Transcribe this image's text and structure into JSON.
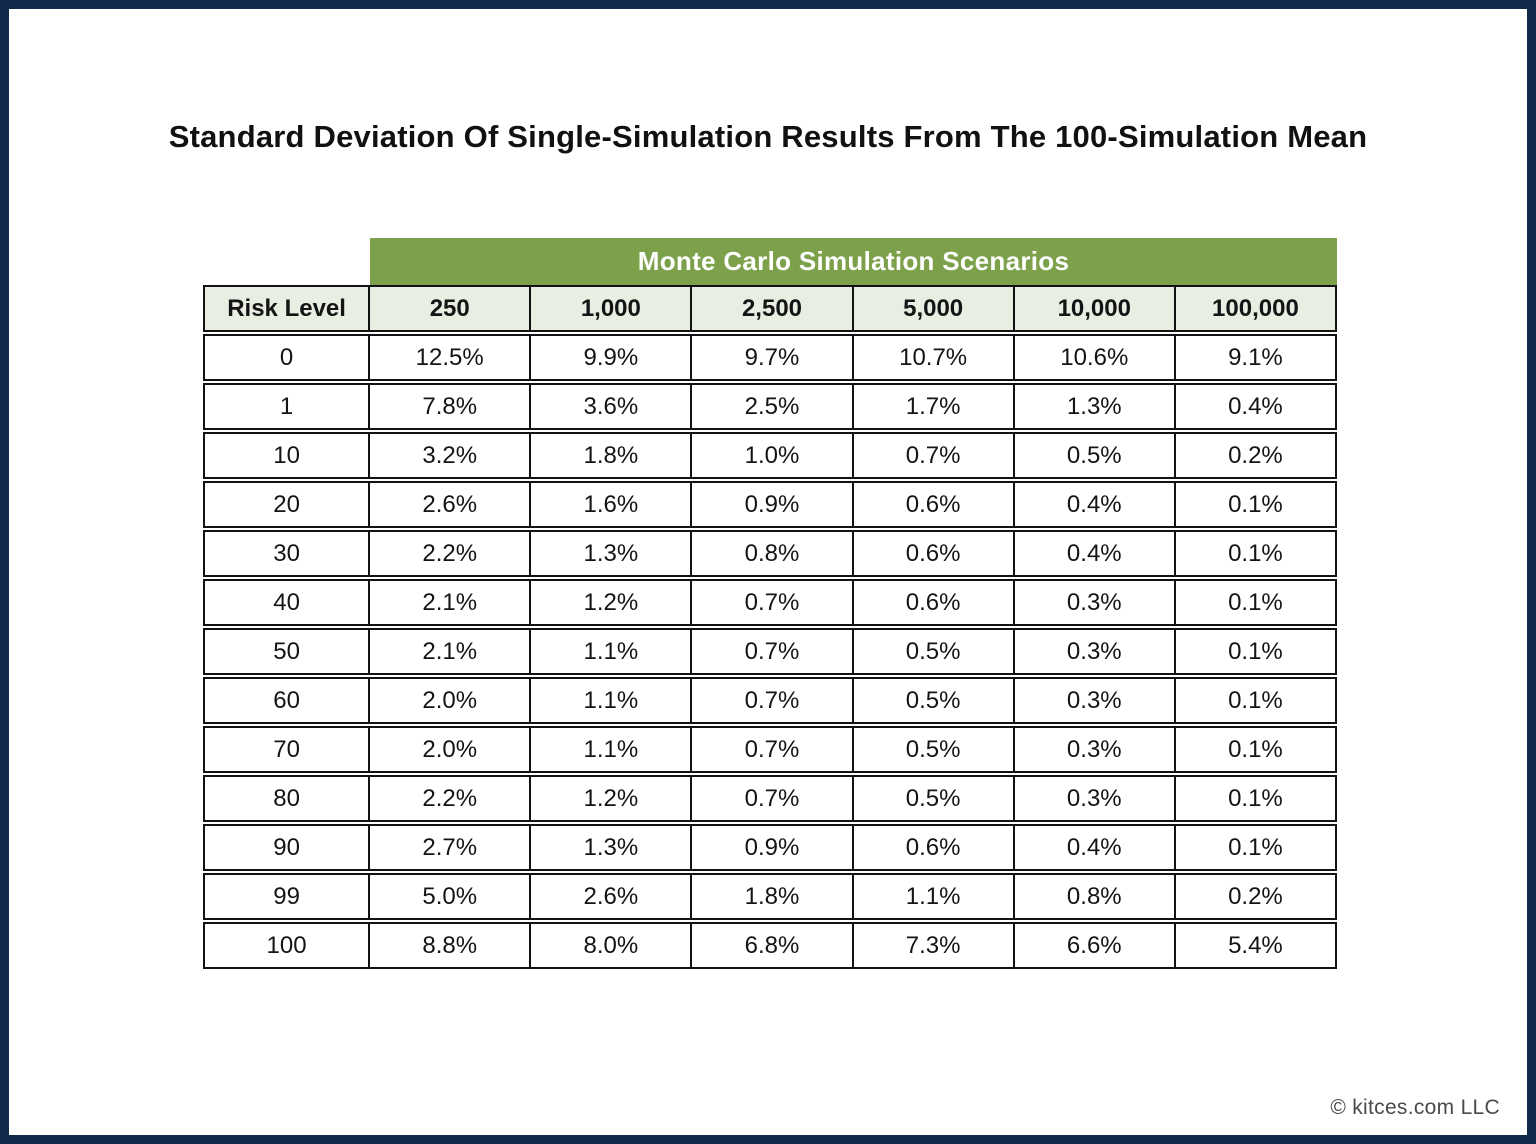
{
  "title": "Standard Deviation Of Single-Simulation Results From The 100-Simulation Mean",
  "footer": "© kitces.com LLC",
  "colors": {
    "page_border": "#12294B",
    "banner_green": "#7CA14A",
    "header_light_green": "#E9EEE2",
    "cell_border": "#121212"
  },
  "chart_data": {
    "type": "table",
    "title": "Standard Deviation Of Single-Simulation Results From The 100-Simulation Mean",
    "group_header": "Monte Carlo Simulation Scenarios",
    "columns": [
      "Risk Level",
      "250",
      "1,000",
      "2,500",
      "5,000",
      "10,000",
      "100,000"
    ],
    "rows": [
      [
        "0",
        "12.5%",
        "9.9%",
        "9.7%",
        "10.7%",
        "10.6%",
        "9.1%"
      ],
      [
        "1",
        "7.8%",
        "3.6%",
        "2.5%",
        "1.7%",
        "1.3%",
        "0.4%"
      ],
      [
        "10",
        "3.2%",
        "1.8%",
        "1.0%",
        "0.7%",
        "0.5%",
        "0.2%"
      ],
      [
        "20",
        "2.6%",
        "1.6%",
        "0.9%",
        "0.6%",
        "0.4%",
        "0.1%"
      ],
      [
        "30",
        "2.2%",
        "1.3%",
        "0.8%",
        "0.6%",
        "0.4%",
        "0.1%"
      ],
      [
        "40",
        "2.1%",
        "1.2%",
        "0.7%",
        "0.6%",
        "0.3%",
        "0.1%"
      ],
      [
        "50",
        "2.1%",
        "1.1%",
        "0.7%",
        "0.5%",
        "0.3%",
        "0.1%"
      ],
      [
        "60",
        "2.0%",
        "1.1%",
        "0.7%",
        "0.5%",
        "0.3%",
        "0.1%"
      ],
      [
        "70",
        "2.0%",
        "1.1%",
        "0.7%",
        "0.5%",
        "0.3%",
        "0.1%"
      ],
      [
        "80",
        "2.2%",
        "1.2%",
        "0.7%",
        "0.5%",
        "0.3%",
        "0.1%"
      ],
      [
        "90",
        "2.7%",
        "1.3%",
        "0.9%",
        "0.6%",
        "0.4%",
        "0.1%"
      ],
      [
        "99",
        "5.0%",
        "2.6%",
        "1.8%",
        "1.1%",
        "0.8%",
        "0.2%"
      ],
      [
        "100",
        "8.8%",
        "8.0%",
        "6.8%",
        "7.3%",
        "6.6%",
        "5.4%"
      ]
    ]
  }
}
